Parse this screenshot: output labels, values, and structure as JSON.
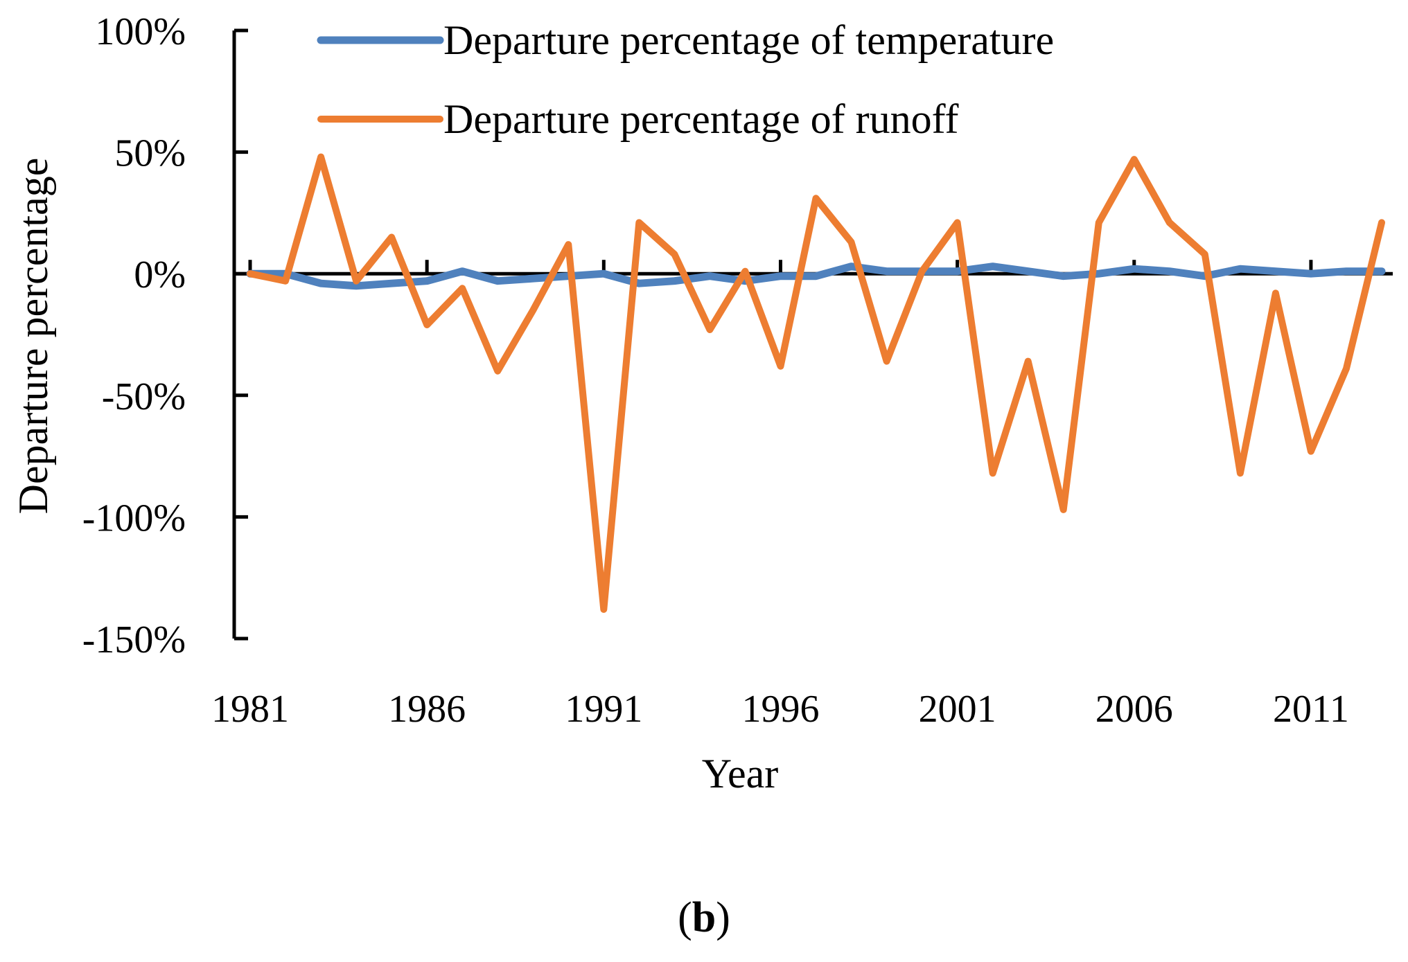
{
  "chart_data": {
    "type": "line",
    "xlabel": "Year",
    "ylabel": "Departure percentage",
    "x_ticks": [
      "1981",
      "1986",
      "1991",
      "1996",
      "2001",
      "2006",
      "2011"
    ],
    "y_ticks": [
      "100%",
      "50%",
      "0%",
      "-50%",
      "-100%",
      "-150%"
    ],
    "xlim": [
      1981,
      2013
    ],
    "ylim": [
      -150,
      100
    ],
    "legend_position": "top",
    "x": [
      1981,
      1982,
      1983,
      1984,
      1985,
      1986,
      1987,
      1988,
      1989,
      1990,
      1991,
      1992,
      1993,
      1994,
      1995,
      1996,
      1997,
      1998,
      1999,
      2000,
      2001,
      2002,
      2003,
      2004,
      2005,
      2006,
      2007,
      2008,
      2009,
      2010,
      2011,
      2012,
      2013
    ],
    "series": [
      {
        "name": "Departure percentage of temperature",
        "color": "#4f81bd",
        "values": [
          0,
          0,
          -4,
          -5,
          -4,
          -3,
          1,
          -3,
          -2,
          -1,
          0,
          -4,
          -3,
          -1,
          -3,
          -1,
          -1,
          3,
          1,
          1,
          1,
          3,
          1,
          -1,
          0,
          2,
          1,
          -1,
          2,
          1,
          0,
          1,
          1
        ]
      },
      {
        "name": "Departure percentage of runoff",
        "color": "#ed7d31",
        "values": [
          0,
          -3,
          48,
          -3,
          15,
          -21,
          -6,
          -40,
          -15,
          12,
          -138,
          21,
          8,
          -23,
          1,
          -38,
          31,
          13,
          -36,
          1,
          21,
          -82,
          -36,
          -97,
          21,
          47,
          21,
          8,
          -82,
          -8,
          -73,
          -39,
          21
        ]
      }
    ]
  },
  "panel_label": {
    "open": "(",
    "letter": "b",
    "close": ")"
  }
}
